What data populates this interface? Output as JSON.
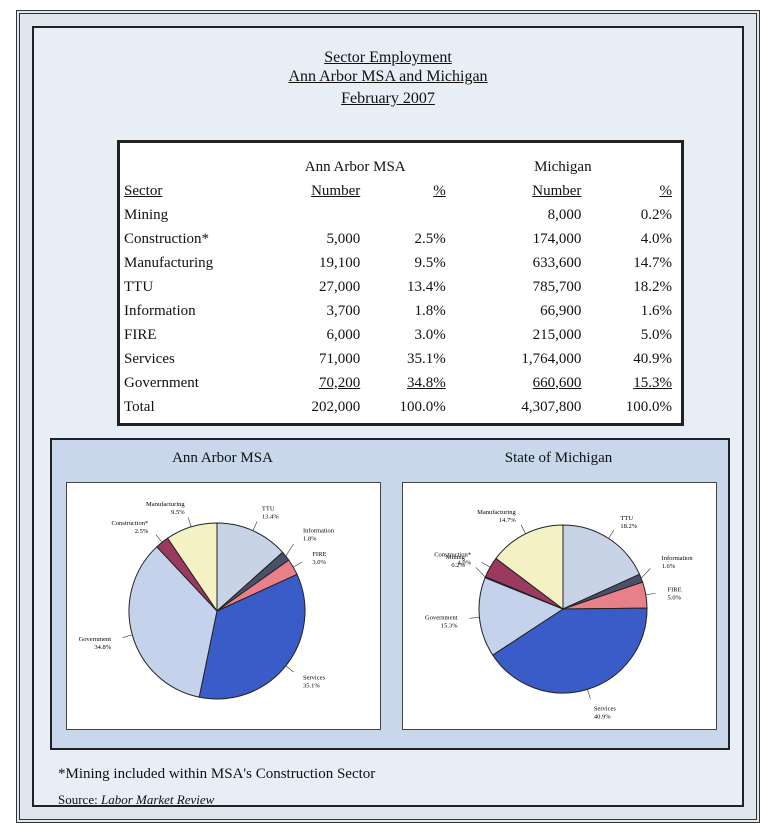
{
  "title": {
    "line1": "Sector Employment",
    "line2": "Ann Arbor MSA and Michigan",
    "line3": "February 2007"
  },
  "table": {
    "group_aa": "Ann Arbor MSA",
    "group_mi": "Michigan",
    "col_sector": "Sector",
    "col_number": "Number",
    "col_pct": "%",
    "rows": [
      {
        "sector": "Mining",
        "aa_num": "",
        "aa_pct": "",
        "mi_num": "8,000",
        "mi_pct": "0.2%"
      },
      {
        "sector": "Construction*",
        "aa_num": "5,000",
        "aa_pct": "2.5%",
        "mi_num": "174,000",
        "mi_pct": "4.0%"
      },
      {
        "sector": "Manufacturing",
        "aa_num": "19,100",
        "aa_pct": "9.5%",
        "mi_num": "633,600",
        "mi_pct": "14.7%"
      },
      {
        "sector": "TTU",
        "aa_num": "27,000",
        "aa_pct": "13.4%",
        "mi_num": "785,700",
        "mi_pct": "18.2%"
      },
      {
        "sector": "Information",
        "aa_num": "3,700",
        "aa_pct": "1.8%",
        "mi_num": "66,900",
        "mi_pct": "1.6%"
      },
      {
        "sector": "FIRE",
        "aa_num": "6,000",
        "aa_pct": "3.0%",
        "mi_num": "215,000",
        "mi_pct": "5.0%"
      },
      {
        "sector": "Services",
        "aa_num": "71,000",
        "aa_pct": "35.1%",
        "mi_num": "1,764,000",
        "mi_pct": "40.9%"
      },
      {
        "sector": "Government",
        "aa_num": "70,200",
        "aa_pct": "34.8%",
        "mi_num": "660,600",
        "mi_pct": "15.3%"
      },
      {
        "sector": "Total",
        "aa_num": "202,000",
        "aa_pct": "100.0%",
        "mi_num": "4,307,800",
        "mi_pct": "100.0%"
      }
    ]
  },
  "chart_data": [
    {
      "type": "pie",
      "title": "Ann Arbor MSA",
      "slices": [
        {
          "label": "TTU",
          "pct_label": "13.4%",
          "value": 13.4,
          "color": "#c8d4e6"
        },
        {
          "label": "Information",
          "pct_label": "1.8%",
          "value": 1.8,
          "color": "#4a5068"
        },
        {
          "label": "FIRE",
          "pct_label": "3.0%",
          "value": 3.0,
          "color": "#e8808a"
        },
        {
          "label": "Services",
          "pct_label": "35.1%",
          "value": 35.1,
          "color": "#3a5cc8"
        },
        {
          "label": "Government",
          "pct_label": "34.8%",
          "value": 34.8,
          "color": "#c4d2ec"
        },
        {
          "label": "Construction*",
          "pct_label": "2.5%",
          "value": 2.5,
          "color": "#9a3a5e"
        },
        {
          "label": "Manufacturing",
          "pct_label": "9.5%",
          "value": 9.5,
          "color": "#f4f2c4"
        }
      ]
    },
    {
      "type": "pie",
      "title": "State of Michigan",
      "slices": [
        {
          "label": "TTU",
          "pct_label": "18.2%",
          "value": 18.2,
          "color": "#c8d4e6"
        },
        {
          "label": "Information",
          "pct_label": "1.6%",
          "value": 1.6,
          "color": "#4a5068"
        },
        {
          "label": "FIRE",
          "pct_label": "5.0%",
          "value": 5.0,
          "color": "#e8808a"
        },
        {
          "label": "Services",
          "pct_label": "40.9%",
          "value": 40.9,
          "color": "#3a5cc8"
        },
        {
          "label": "Government",
          "pct_label": "15.3%",
          "value": 15.3,
          "color": "#c4d2ec"
        },
        {
          "label": "Mining",
          "pct_label": "0.2%",
          "value": 0.2,
          "color": "#6e6e6e"
        },
        {
          "label": "Construction*",
          "pct_label": "4.0%",
          "value": 4.0,
          "color": "#9a3a5e"
        },
        {
          "label": "Manufacturing",
          "pct_label": "14.7%",
          "value": 14.7,
          "color": "#f4f2c4"
        }
      ]
    }
  ],
  "footnote": "*Mining included within MSA's Construction Sector",
  "source": {
    "prefix": "Source:",
    "name": "Labor Market Review"
  }
}
